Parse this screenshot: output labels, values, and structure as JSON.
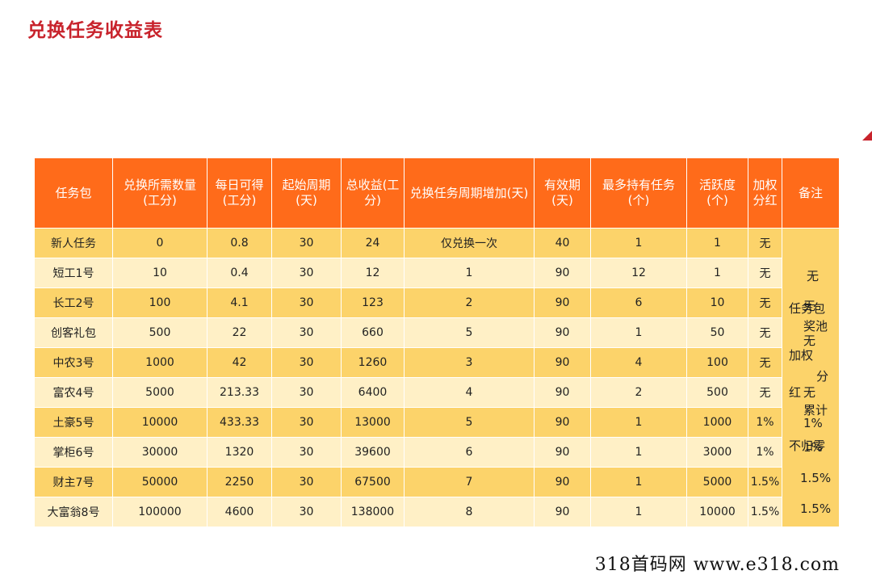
{
  "title": "兑换任务收益表",
  "headers": {
    "package": "任务包",
    "required": "兑换所需数量(工分)",
    "daily": "每日可得(工分)",
    "period": "起始周期(天)",
    "total": "总收益(工分)",
    "increase": "兑换任务周期增加(天)",
    "validity": "有效期(天)",
    "max_hold": "最多持有任务(个)",
    "activity": "活跃度(个)",
    "weighted": "加权分红",
    "note": "备注"
  },
  "rows": [
    {
      "package": "新人任务",
      "required": "0",
      "daily": "0.8",
      "period": "30",
      "total": "24",
      "increase": "仅兑换一次",
      "validity": "40",
      "max_hold": "1",
      "activity": "1",
      "weighted": "无"
    },
    {
      "package": "短工1号",
      "required": "10",
      "daily": "0.4",
      "period": "30",
      "total": "12",
      "increase": "1",
      "validity": "90",
      "max_hold": "12",
      "activity": "1",
      "weighted": "无"
    },
    {
      "package": "长工2号",
      "required": "100",
      "daily": "4.1",
      "period": "30",
      "total": "123",
      "increase": "2",
      "validity": "90",
      "max_hold": "6",
      "activity": "10",
      "weighted": "无"
    },
    {
      "package": "创客礼包",
      "required": "500",
      "daily": "22",
      "period": "30",
      "total": "660",
      "increase": "5",
      "validity": "90",
      "max_hold": "1",
      "activity": "50",
      "weighted": "无"
    },
    {
      "package": "中农3号",
      "required": "1000",
      "daily": "42",
      "period": "30",
      "total": "1260",
      "increase": "3",
      "validity": "90",
      "max_hold": "4",
      "activity": "100",
      "weighted": "无"
    },
    {
      "package": "富农4号",
      "required": "5000",
      "daily": "213.33",
      "period": "30",
      "total": "6400",
      "increase": "4",
      "validity": "90",
      "max_hold": "2",
      "activity": "500",
      "weighted": "无"
    },
    {
      "package": "土豪5号",
      "required": "10000",
      "daily": "433.33",
      "period": "30",
      "total": "13000",
      "increase": "5",
      "validity": "90",
      "max_hold": "1",
      "activity": "1000",
      "weighted": "1%"
    },
    {
      "package": "掌柜6号",
      "required": "30000",
      "daily": "1320",
      "period": "30",
      "total": "39600",
      "increase": "6",
      "validity": "90",
      "max_hold": "1",
      "activity": "3000",
      "weighted": "1%"
    },
    {
      "package": "财主7号",
      "required": "50000",
      "daily": "2250",
      "period": "30",
      "total": "67500",
      "increase": "7",
      "validity": "90",
      "max_hold": "1",
      "activity": "5000",
      "weighted": "1.5%"
    },
    {
      "package": "大富翁8号",
      "required": "100000",
      "daily": "4600",
      "period": "30",
      "total": "138000",
      "increase": "8",
      "validity": "90",
      "max_hold": "1",
      "activity": "10000",
      "weighted": "1.5%"
    }
  ],
  "note_column": {
    "lines": [
      "无",
      "无",
      "任务包",
      "奖池",
      "无",
      "加权",
      "分",
      "红",
      "无",
      "累计",
      "1%",
      "不归零",
      "1%",
      "1.5%",
      "1.5%"
    ]
  },
  "watermark": "318首码网  www.e318.com"
}
